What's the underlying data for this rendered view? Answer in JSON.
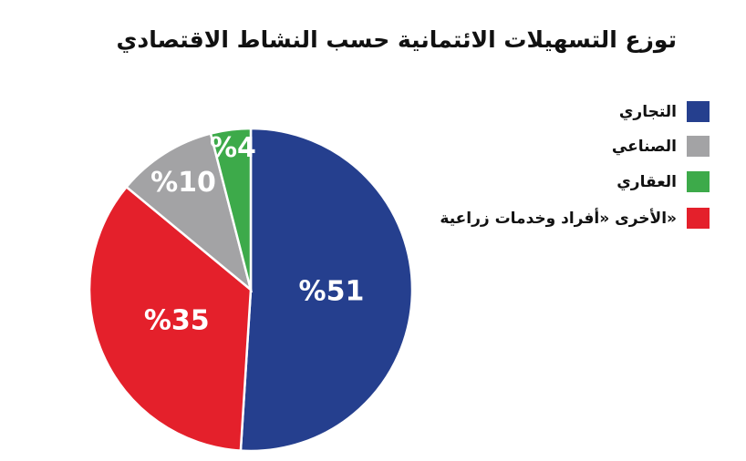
{
  "chart_data": {
    "type": "pie",
    "title": "توزع التسهيلات الائتمانية حسب النشاط الاقتصادي",
    "categories": [
      "التجاري",
      "الأخرى «أفراد وخدمات زراعية»",
      "الصناعي",
      "العقاري"
    ],
    "values": [
      51,
      35,
      10,
      4
    ],
    "value_labels": [
      "%51",
      "%35",
      "%10",
      "%4"
    ],
    "colors": [
      "#253f8e",
      "#e4202b",
      "#a3a3a5",
      "#3daa4a"
    ],
    "legend": "top-right"
  }
}
